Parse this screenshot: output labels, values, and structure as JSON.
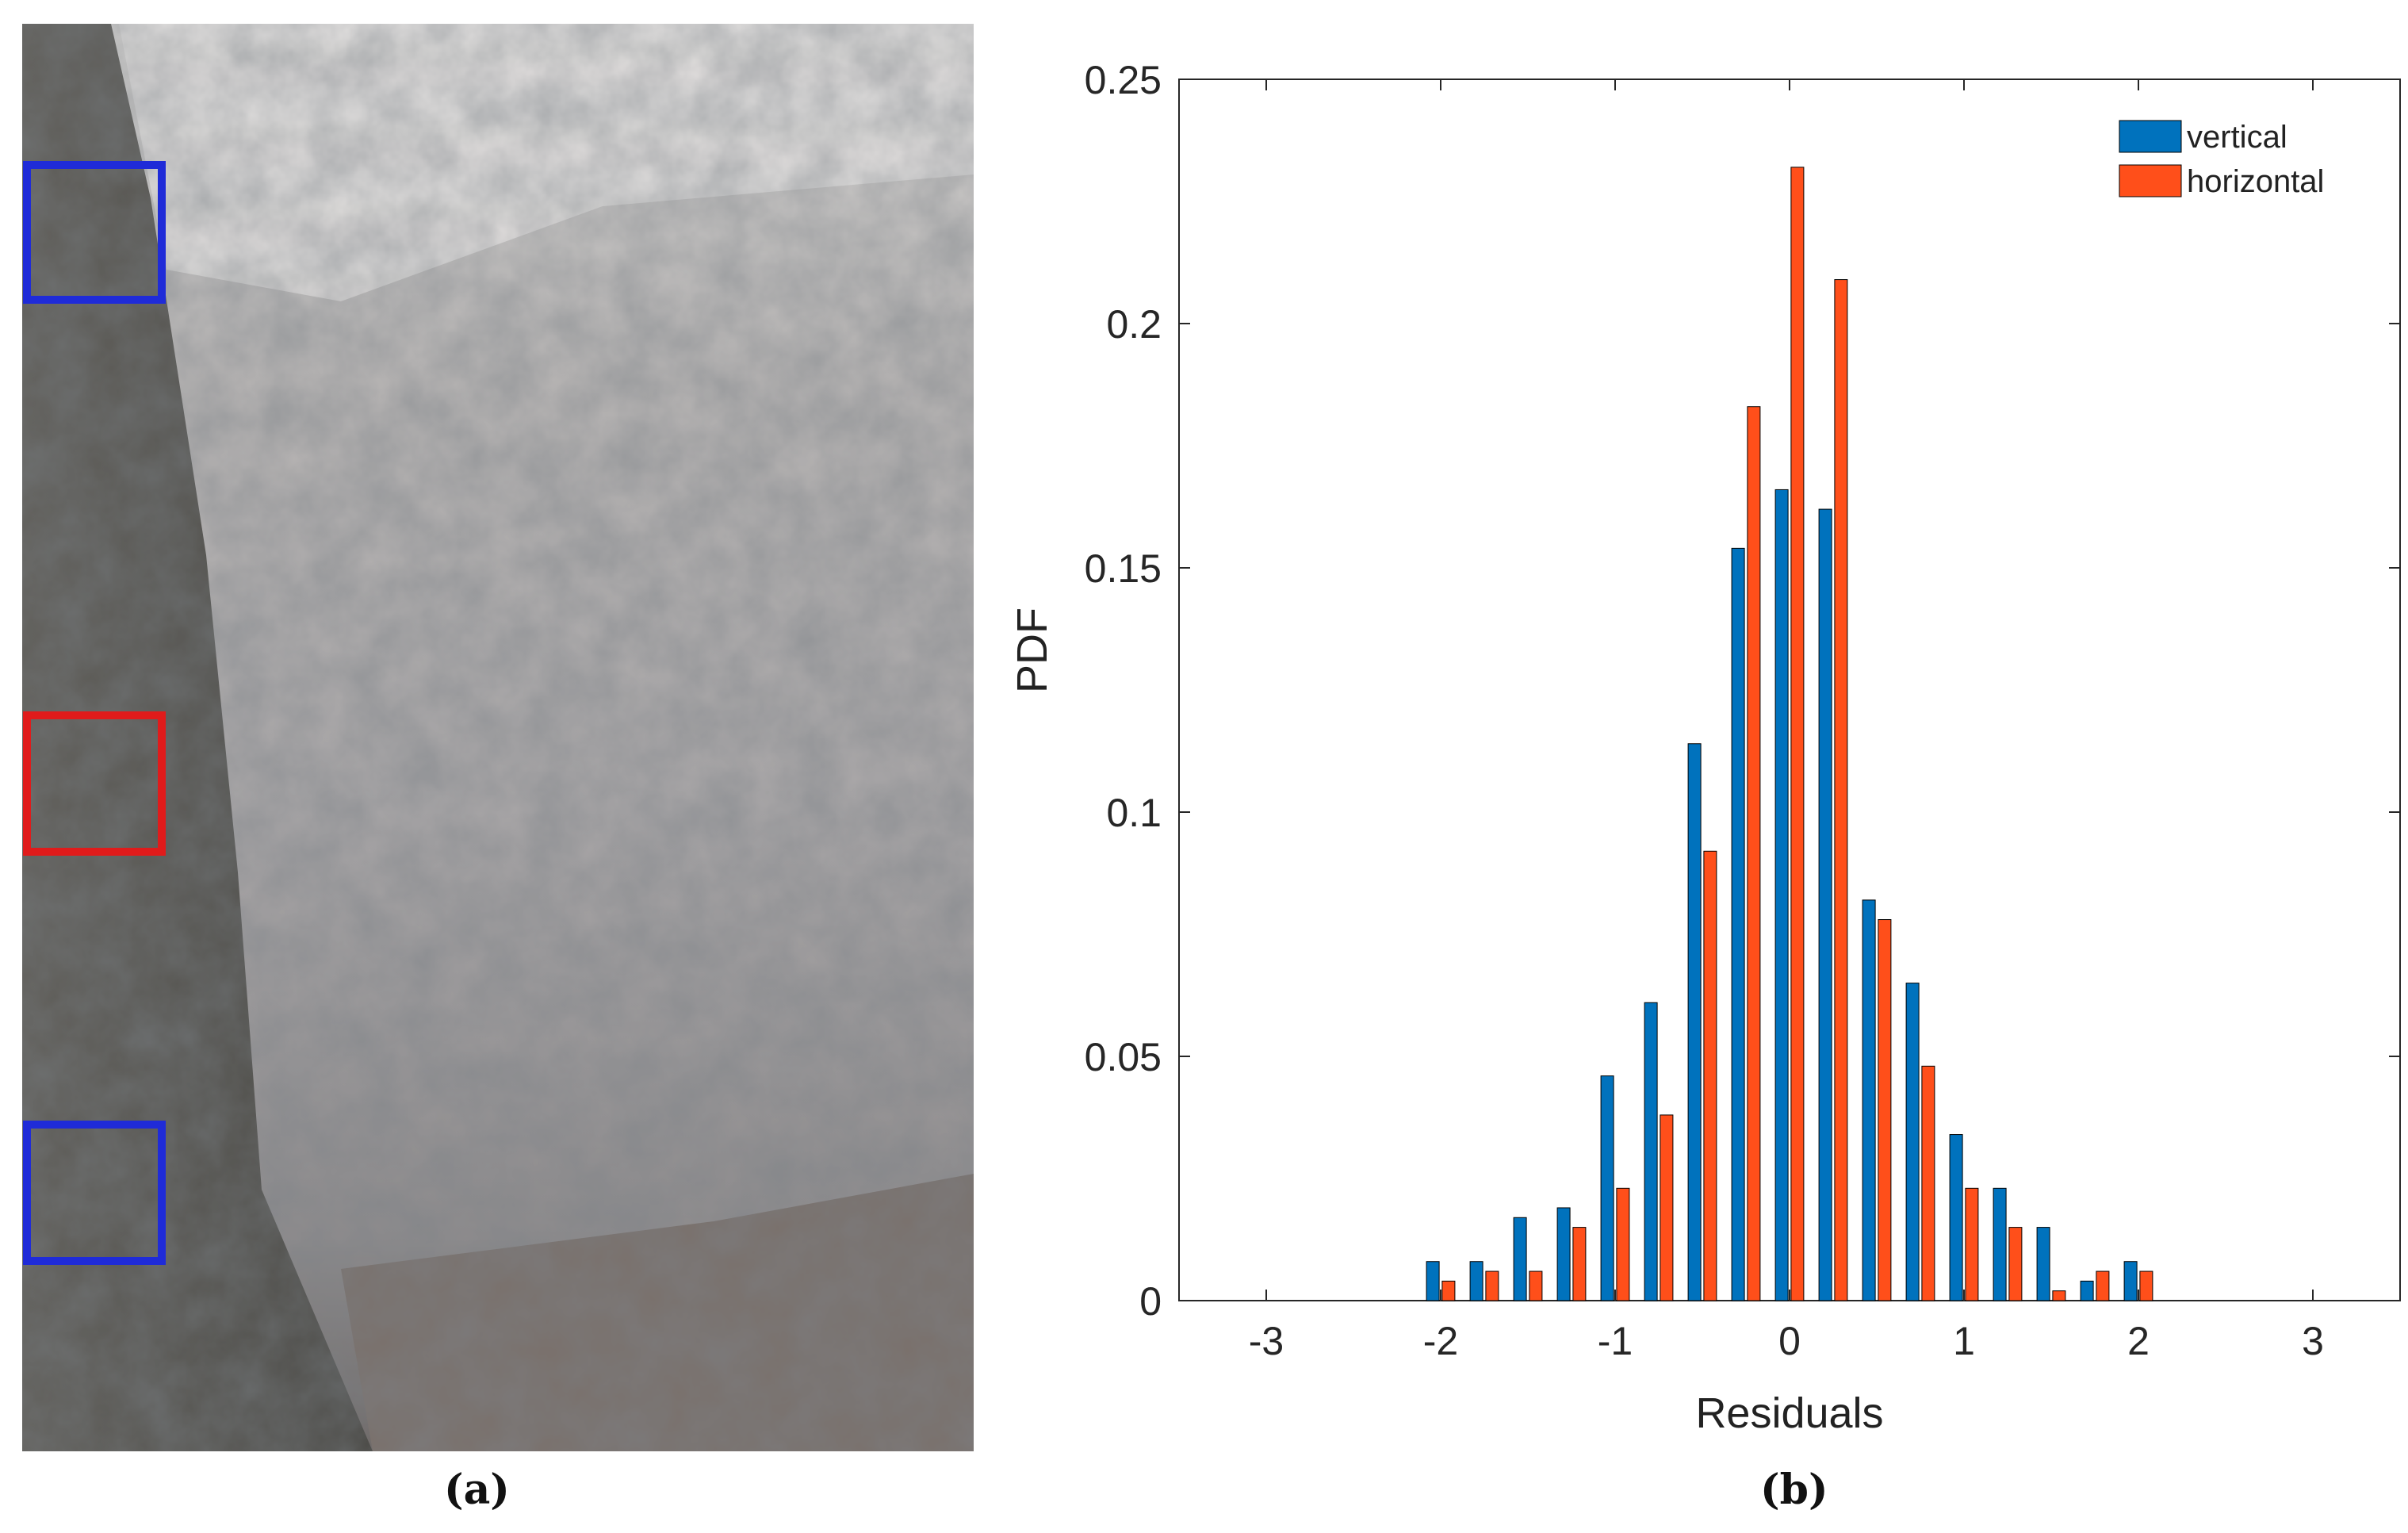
{
  "captions": {
    "a": "(a)",
    "b": "(b)"
  },
  "photo": {
    "boxes": [
      {
        "color": "#1f2bd8"
      },
      {
        "color": "#e01b1b"
      },
      {
        "color": "#1f2bd8"
      }
    ]
  },
  "chart_data": {
    "type": "bar",
    "title": "",
    "xlabel": "Residuals",
    "ylabel": "PDF",
    "xlim": [
      -3.5,
      3.5
    ],
    "ylim": [
      0,
      0.25
    ],
    "xticks": [
      -3,
      -2,
      -1,
      0,
      1,
      2,
      3
    ],
    "yticks": [
      0,
      0.05,
      0.1,
      0.15,
      0.2,
      0.25
    ],
    "ytick_labels": [
      "0",
      "0.05",
      "0.1",
      "0.15",
      "0.2",
      "0.25"
    ],
    "grid": false,
    "legend_position": "top-right",
    "bin_centers": [
      -2.0,
      -1.75,
      -1.5,
      -1.25,
      -1.0,
      -0.75,
      -0.5,
      -0.25,
      0.0,
      0.25,
      0.5,
      0.75,
      1.0,
      1.25,
      1.5,
      1.75,
      2.0
    ],
    "series": [
      {
        "name": "vertical",
        "color": "#0072bd",
        "values": [
          0.008,
          0.008,
          0.017,
          0.019,
          0.046,
          0.061,
          0.114,
          0.154,
          0.166,
          0.162,
          0.082,
          0.065,
          0.034,
          0.023,
          0.015,
          0.004,
          0.008
        ]
      },
      {
        "name": "horizontal",
        "color": "#ff4f1a",
        "values": [
          0.004,
          0.006,
          0.006,
          0.015,
          0.023,
          0.038,
          0.092,
          0.183,
          0.232,
          0.209,
          0.078,
          0.048,
          0.023,
          0.015,
          0.002,
          0.006,
          0.006
        ]
      }
    ]
  }
}
